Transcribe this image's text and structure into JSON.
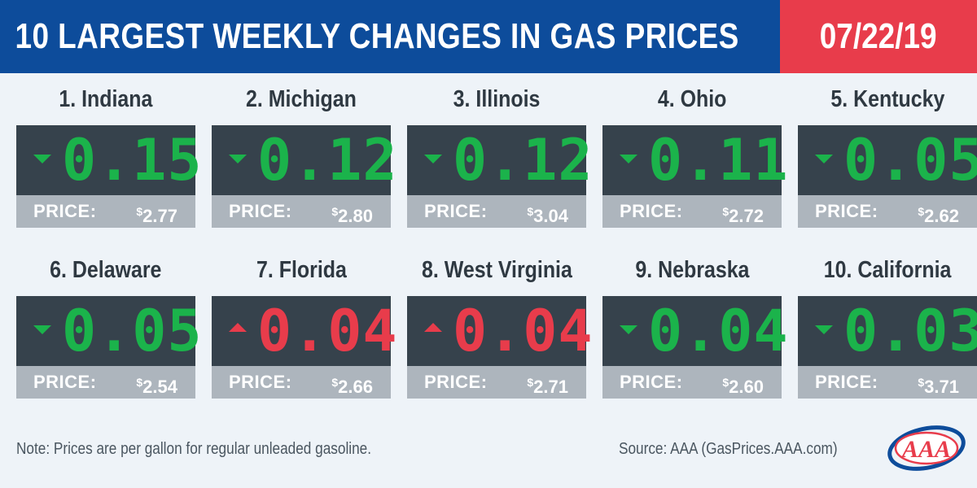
{
  "header": {
    "title": "10 LARGEST WEEKLY CHANGES IN GAS PRICES",
    "date": "07/22/19"
  },
  "price_label": "PRICE:",
  "currency_symbol": "$",
  "states": [
    {
      "rank_name": "1. Indiana",
      "change": "0.15",
      "direction": "down",
      "price": "2.77"
    },
    {
      "rank_name": "2. Michigan",
      "change": "0.12",
      "direction": "down",
      "price": "2.80"
    },
    {
      "rank_name": "3. Illinois",
      "change": "0.12",
      "direction": "down",
      "price": "3.04"
    },
    {
      "rank_name": "4. Ohio",
      "change": "0.11",
      "direction": "down",
      "price": "2.72"
    },
    {
      "rank_name": "5. Kentucky",
      "change": "0.05",
      "direction": "down",
      "price": "2.62"
    },
    {
      "rank_name": "6. Delaware",
      "change": "0.05",
      "direction": "down",
      "price": "2.54"
    },
    {
      "rank_name": "7. Florida",
      "change": "0.04",
      "direction": "up",
      "price": "2.66"
    },
    {
      "rank_name": "8. West Virginia",
      "change": "0.04",
      "direction": "up",
      "price": "2.71"
    },
    {
      "rank_name": "9. Nebraska",
      "change": "0.04",
      "direction": "down",
      "price": "2.60"
    },
    {
      "rank_name": "10. California",
      "change": "0.03",
      "direction": "down",
      "price": "3.71"
    }
  ],
  "footer": {
    "note": "Note: Prices are per gallon for regular unleaded gasoline.",
    "source": "Source: AAA (GasPrices.AAA.com)",
    "logo_text": "AAA"
  },
  "colors": {
    "header_blue": "#0d4c9b",
    "header_red": "#e83c4b",
    "decrease_green": "#1bb34b",
    "increase_red": "#e83c4b",
    "display_dark": "#36424c",
    "price_bar_gray": "#adb5bd"
  },
  "icons": {
    "decrease": "triangle-down-icon",
    "increase": "triangle-up-icon",
    "logo": "aaa-logo"
  }
}
